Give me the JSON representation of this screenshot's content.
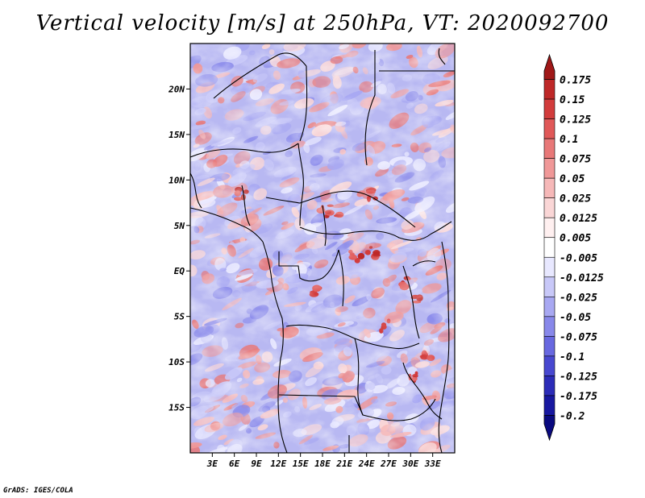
{
  "title": "Vertical velocity [m/s] at 250hPa, VT: 2020092700",
  "credit": "GrADS: IGES/COLA",
  "map": {
    "lon_range": [
      0,
      36
    ],
    "lat_range": [
      -20,
      25
    ],
    "lat_labels": [
      {
        "text": "20N",
        "lat": 20
      },
      {
        "text": "15N",
        "lat": 15
      },
      {
        "text": "10N",
        "lat": 10
      },
      {
        "text": "5N",
        "lat": 5
      },
      {
        "text": "EQ",
        "lat": 0
      },
      {
        "text": "5S",
        "lat": -5
      },
      {
        "text": "10S",
        "lat": -10
      },
      {
        "text": "15S",
        "lat": -15
      }
    ],
    "lon_labels": [
      {
        "text": "3E",
        "lon": 3
      },
      {
        "text": "6E",
        "lon": 6
      },
      {
        "text": "9E",
        "lon": 9
      },
      {
        "text": "12E",
        "lon": 12
      },
      {
        "text": "15E",
        "lon": 15
      },
      {
        "text": "18E",
        "lon": 18
      },
      {
        "text": "21E",
        "lon": 21
      },
      {
        "text": "24E",
        "lon": 24
      },
      {
        "text": "27E",
        "lon": 27
      },
      {
        "text": "30E",
        "lon": 30
      },
      {
        "text": "33E",
        "lon": 33
      }
    ]
  },
  "colorbar": {
    "levels": [
      "0.175",
      "0.15",
      "0.125",
      "0.1",
      "0.075",
      "0.05",
      "0.025",
      "0.0125",
      "0.005",
      "-0.005",
      "-0.0125",
      "-0.025",
      "-0.05",
      "-0.075",
      "-0.1",
      "-0.125",
      "-0.175",
      "-0.2"
    ],
    "colors": [
      "#a01818",
      "#be2828",
      "#d23c3c",
      "#e05858",
      "#e87878",
      "#f09898",
      "#f6b8b8",
      "#fad6d6",
      "#fff0f0",
      "#ffffff",
      "#e8e8ff",
      "#c8c8f8",
      "#a8a8f2",
      "#8888ea",
      "#6868e0",
      "#4848d0",
      "#2c2cb8",
      "#1818a0",
      "#0a0a80"
    ]
  }
}
